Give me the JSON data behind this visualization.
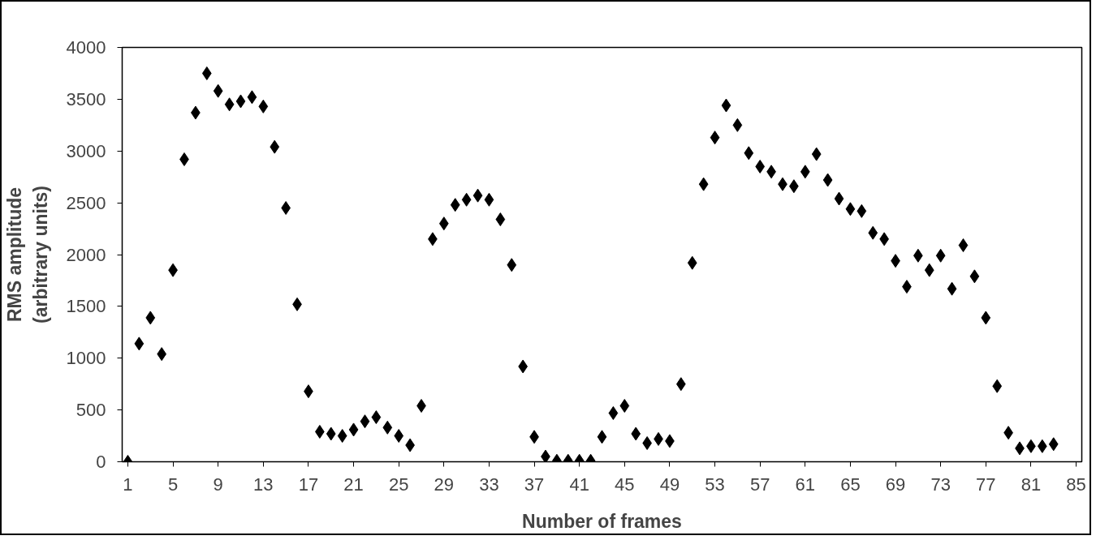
{
  "chart_data": {
    "type": "scatter",
    "xlabel": "Number of frames",
    "ylabel": "RMS amplitude\n(arbitrary units)",
    "x": [
      1,
      2,
      3,
      4,
      5,
      6,
      7,
      8,
      9,
      10,
      11,
      12,
      13,
      14,
      15,
      16,
      17,
      18,
      19,
      20,
      21,
      22,
      23,
      24,
      25,
      26,
      27,
      28,
      29,
      30,
      31,
      32,
      33,
      34,
      35,
      36,
      37,
      38,
      39,
      40,
      41,
      42,
      43,
      44,
      45,
      46,
      47,
      48,
      49,
      50,
      51,
      52,
      53,
      54,
      55,
      56,
      57,
      58,
      59,
      60,
      61,
      62,
      63,
      64,
      65,
      66,
      67,
      68,
      69,
      70,
      71,
      72,
      73,
      74,
      75,
      76,
      77,
      78,
      79,
      80,
      81,
      82,
      83
    ],
    "values": [
      0,
      1140,
      1390,
      1040,
      1850,
      2920,
      3370,
      3750,
      3580,
      3450,
      3480,
      3520,
      3430,
      3040,
      2450,
      1520,
      680,
      290,
      270,
      250,
      310,
      390,
      430,
      330,
      250,
      160,
      540,
      2150,
      2300,
      2480,
      2530,
      2570,
      2530,
      2340,
      1900,
      920,
      240,
      50,
      10,
      10,
      10,
      10,
      240,
      470,
      540,
      270,
      180,
      220,
      200,
      750,
      1920,
      2680,
      3130,
      3440,
      3250,
      2980,
      2850,
      2800,
      2680,
      2660,
      2800,
      2970,
      2720,
      2540,
      2440,
      2420,
      2210,
      2150,
      1940,
      1690,
      1990,
      1850,
      1990,
      1670,
      2090,
      1790,
      1390,
      730,
      280,
      130,
      150,
      150,
      170
    ],
    "color": "#000000",
    "marker": "diamond",
    "grid": false,
    "xlim": [
      0.5,
      85.5
    ],
    "xticks": [
      1,
      5,
      9,
      13,
      17,
      21,
      25,
      29,
      33,
      37,
      41,
      45,
      49,
      53,
      57,
      61,
      65,
      69,
      73,
      77,
      81,
      85
    ],
    "ylim": [
      0,
      4000
    ],
    "yticks": [
      0,
      500,
      1000,
      1500,
      2000,
      2500,
      3000,
      3500,
      4000
    ]
  }
}
